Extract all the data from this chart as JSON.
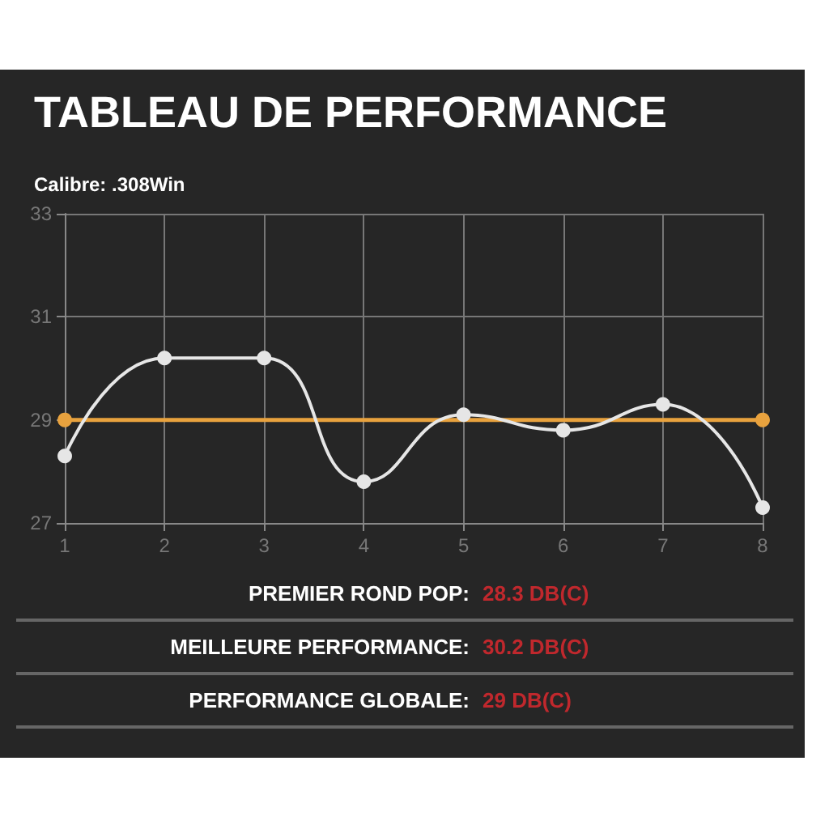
{
  "chart_data": {
    "type": "line",
    "title": "TABLEAU DE PERFORMANCE",
    "subtitle": "Calibre: .308Win",
    "x": [
      1,
      2,
      3,
      4,
      5,
      6,
      7,
      8
    ],
    "xlim": [
      1,
      8
    ],
    "xticks": [
      1,
      2,
      3,
      4,
      5,
      6,
      7,
      8
    ],
    "series": [
      {
        "color": "#e6e6e6",
        "values": [
          28.3,
          30.2,
          30.2,
          27.8,
          29.1,
          28.8,
          29.3,
          27.3
        ]
      },
      {
        "color": "#e8a23e",
        "x": [
          1,
          8
        ],
        "values": [
          29,
          29
        ]
      }
    ],
    "ylim": [
      27,
      33
    ],
    "yticks": [
      27,
      29,
      31,
      33
    ],
    "grid": true,
    "marker": "circle",
    "annotations": [
      "PREMIER ROND POP:",
      "28.3 DB(C)",
      "MEILLEURE PERFORMANCE:",
      "30.2 DB(C)",
      "PERFORMANCE GLOBALE:",
      "29 DB(C)"
    ]
  }
}
